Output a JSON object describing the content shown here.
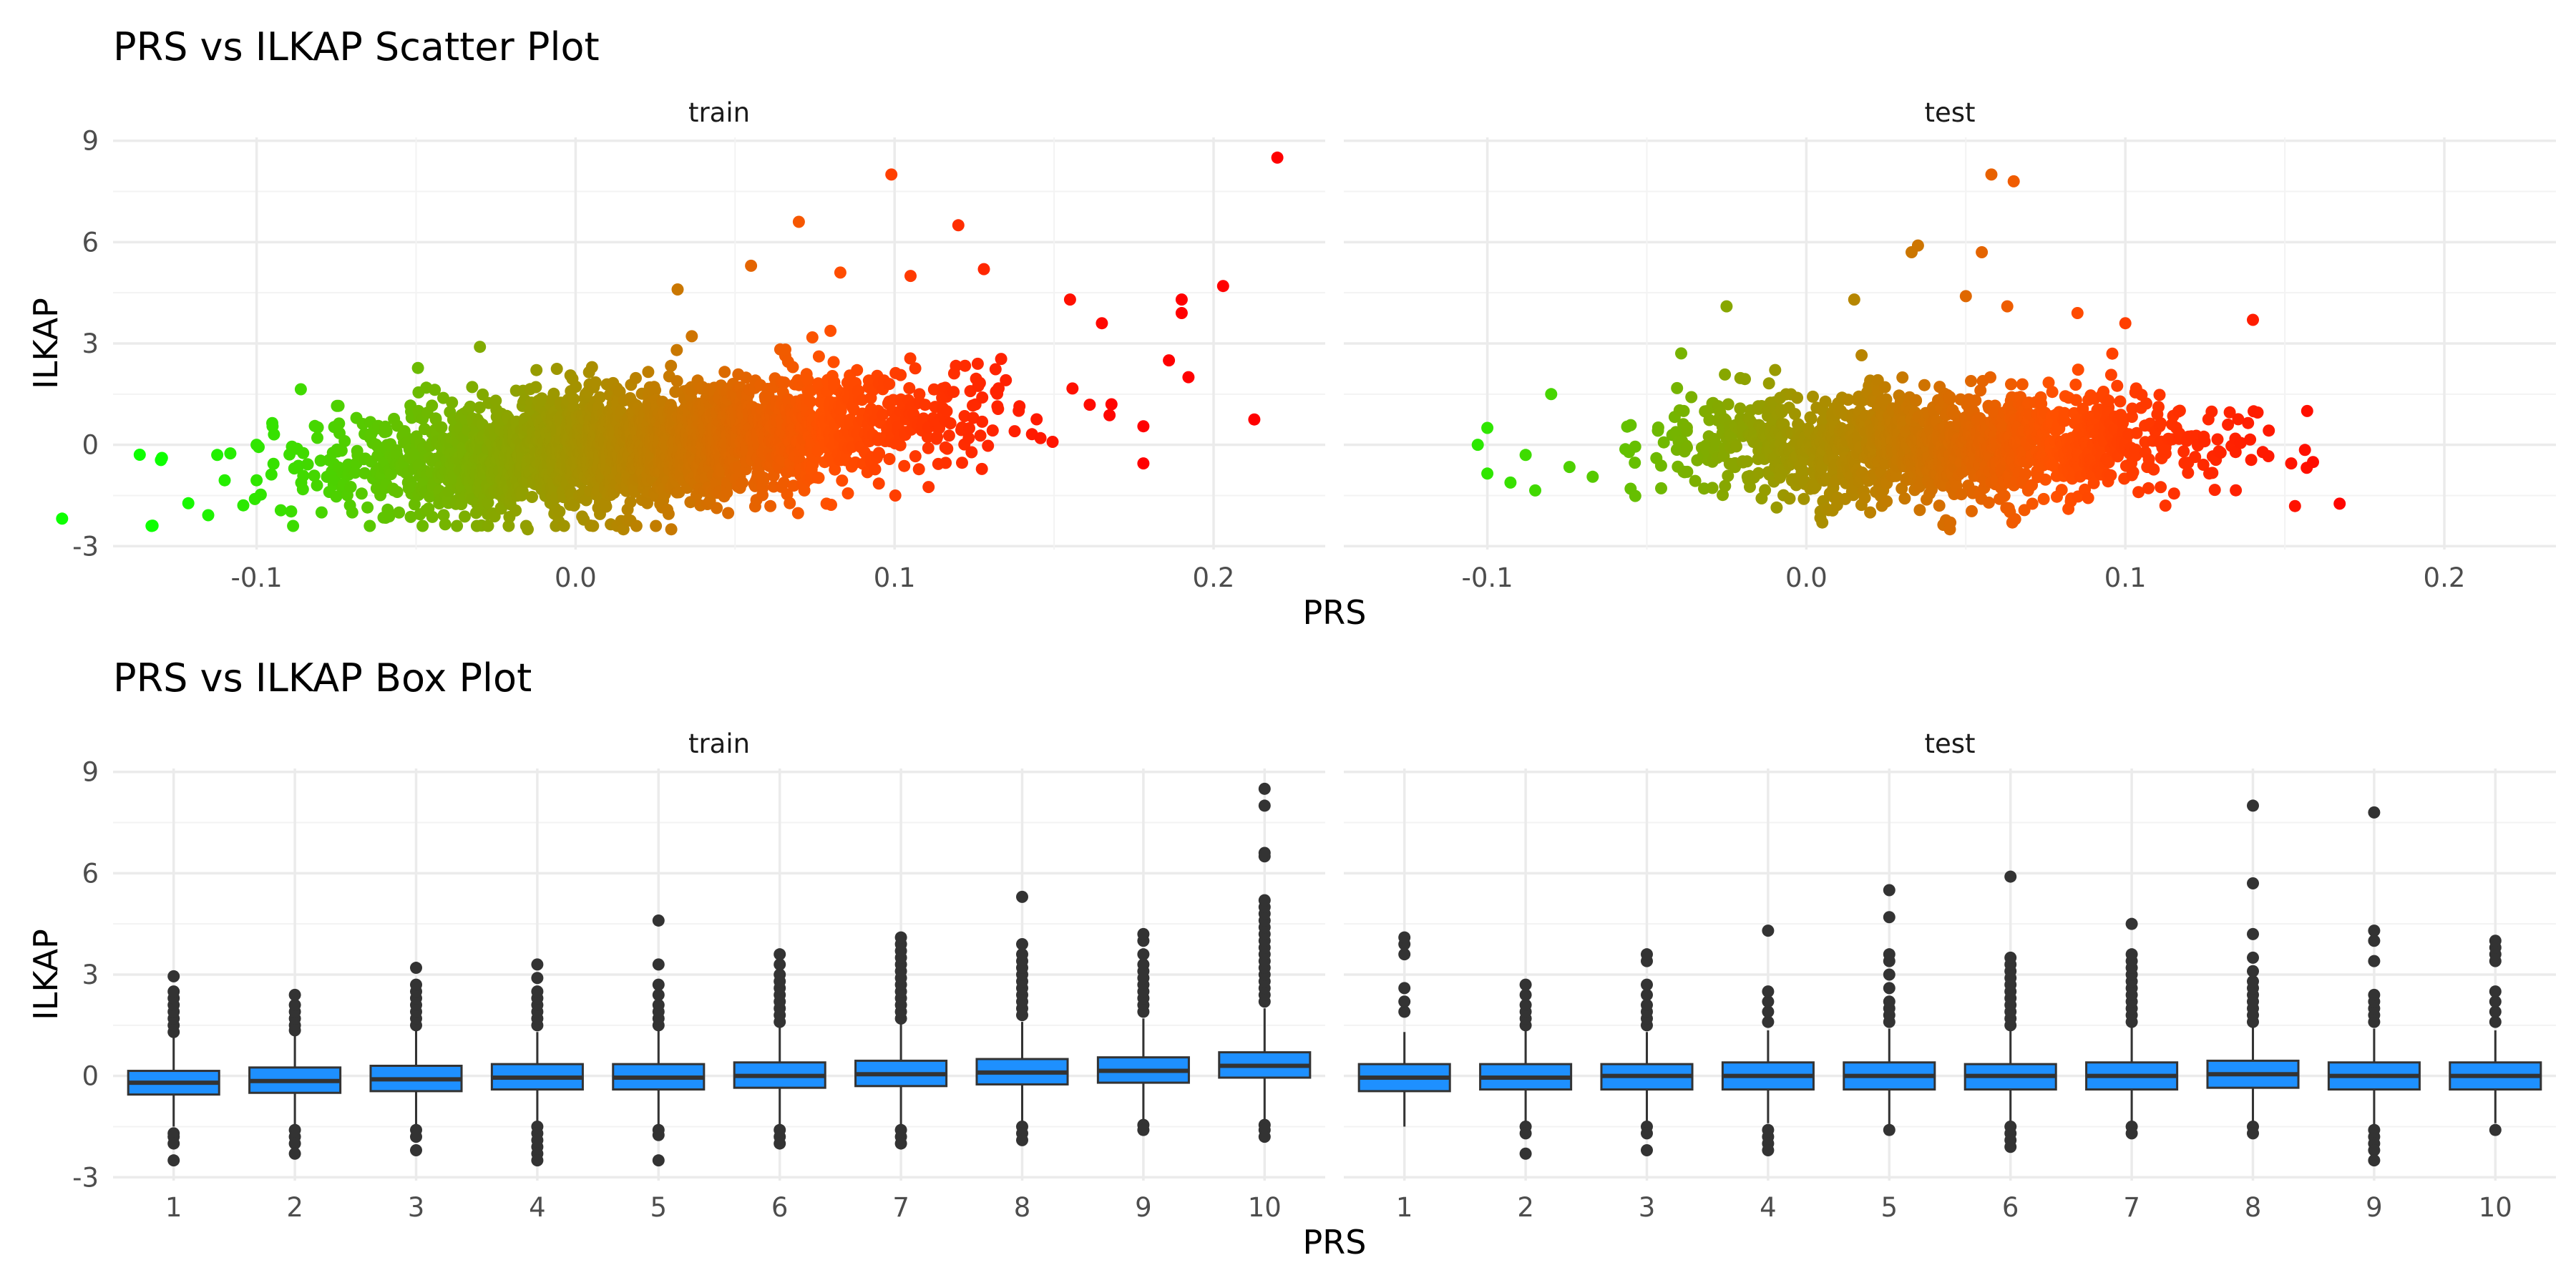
{
  "figure": {
    "background": "#FFFFFF",
    "grid_major": "#EBEBEB",
    "grid_minor": "#F3F3F3"
  },
  "scatter_title": "PRS vs ILKAP Scatter Plot",
  "box_title": "PRS vs ILKAP Box Plot",
  "scatter_xlabel": "PRS",
  "box_xlabel": "PRS",
  "scatter_ylabel": "ILKAP",
  "box_ylabel": "ILKAP",
  "panels": {
    "train": "train",
    "test": "test"
  },
  "scatter_yticks": [
    "-3",
    "0",
    "3",
    "6",
    "9"
  ],
  "scatter_xticks": [
    "-0.1",
    "0.0",
    "0.1",
    "0.2"
  ],
  "box_yticks": [
    "-3",
    "0",
    "3",
    "6",
    "9"
  ],
  "box_xticks": [
    "1",
    "2",
    "3",
    "4",
    "5",
    "6",
    "7",
    "8",
    "9",
    "10"
  ],
  "chart_data": [
    {
      "type": "scatter",
      "title": "PRS vs ILKAP Scatter Plot",
      "xlabel": "PRS",
      "ylabel": "ILKAP",
      "xlim": [
        -0.145,
        0.235
      ],
      "ylim": [
        -3.1,
        9.1
      ],
      "xticks": [
        -0.1,
        0.0,
        0.1,
        0.2
      ],
      "yticks": [
        -3,
        0,
        3,
        6,
        9
      ],
      "grid": true,
      "color_scale": {
        "low": "#00FF00",
        "high": "#FF0000",
        "domain": [
          -0.13,
          0.22
        ]
      },
      "facets": [
        {
          "name": "train",
          "x_center": 0.02,
          "x_spread": 0.045,
          "slope": 8,
          "noise": 0.75,
          "n_bulk": 2800,
          "outliers": [
            [
              -0.13,
              -0.45
            ],
            [
              -0.11,
              -1.05
            ],
            [
              -0.1,
              -1.05
            ],
            [
              -0.1,
              0
            ],
            [
              -0.095,
              0.55
            ],
            [
              0.099,
              8.0
            ],
            [
              0.22,
              8.5
            ],
            [
              0.203,
              4.7
            ],
            [
              0.19,
              4.3
            ],
            [
              0.19,
              3.9
            ],
            [
              0.186,
              2.5
            ],
            [
              0.178,
              -0.55
            ],
            [
              0.178,
              0.55
            ],
            [
              0.07,
              6.6
            ],
            [
              0.12,
              6.5
            ],
            [
              0.055,
              5.3
            ],
            [
              0.083,
              5.1
            ],
            [
              0.105,
              5.0
            ],
            [
              0.128,
              5.2
            ],
            [
              0.032,
              4.6
            ],
            [
              0.155,
              4.3
            ],
            [
              0.165,
              3.6
            ],
            [
              0.168,
              1.2
            ],
            [
              -0.03,
              2.9
            ],
            [
              -0.015,
              -2.5
            ],
            [
              0.015,
              -2.5
            ],
            [
              0.03,
              -2.5
            ],
            [
              -0.07,
              -2.0
            ]
          ]
        },
        {
          "name": "test",
          "x_center": 0.04,
          "x_spread": 0.04,
          "slope": 0,
          "noise": 0.7,
          "n_bulk": 1500,
          "outliers": [
            [
              -0.1,
              0.5
            ],
            [
              -0.103,
              0
            ],
            [
              -0.1,
              -0.85
            ],
            [
              -0.088,
              -0.3
            ],
            [
              -0.085,
              -1.35
            ],
            [
              -0.08,
              1.5
            ],
            [
              0.058,
              8.0
            ],
            [
              0.065,
              7.8
            ],
            [
              0.035,
              5.9
            ],
            [
              0.033,
              5.7
            ],
            [
              0.055,
              5.7
            ],
            [
              -0.025,
              4.1
            ],
            [
              0.015,
              4.3
            ],
            [
              0.05,
              4.4
            ],
            [
              0.063,
              4.1
            ],
            [
              0.14,
              3.7
            ],
            [
              0.157,
              1.0
            ],
            [
              0.152,
              -0.55
            ],
            [
              0.045,
              -2.5
            ],
            [
              0.005,
              -2.3
            ],
            [
              0.02,
              -2.0
            ],
            [
              0.085,
              3.9
            ],
            [
              0.1,
              3.6
            ]
          ]
        }
      ]
    },
    {
      "type": "box",
      "title": "PRS vs ILKAP Box Plot",
      "xlabel": "PRS",
      "ylabel": "ILKAP",
      "categories": [
        "1",
        "2",
        "3",
        "4",
        "5",
        "6",
        "7",
        "8",
        "9",
        "10"
      ],
      "ylim": [
        -3.1,
        9.1
      ],
      "yticks": [
        -3,
        0,
        3,
        6,
        9
      ],
      "fill": "#1E90FF",
      "series": [
        {
          "name": "train",
          "boxes": [
            {
              "q1": -0.55,
              "median": -0.2,
              "q3": 0.15,
              "whisker_low": -1.5,
              "whisker_high": 1.15,
              "outliers": [
                1.3,
                1.5,
                1.7,
                1.9,
                2.1,
                2.3,
                2.5,
                2.95,
                -1.7,
                -1.8,
                -2.0,
                -2.5
              ]
            },
            {
              "q1": -0.5,
              "median": -0.15,
              "q3": 0.25,
              "whisker_low": -1.45,
              "whisker_high": 1.2,
              "outliers": [
                1.35,
                1.5,
                1.7,
                1.9,
                2.1,
                2.4,
                -1.6,
                -1.8,
                -2.0,
                -2.3
              ]
            },
            {
              "q1": -0.45,
              "median": -0.1,
              "q3": 0.3,
              "whisker_low": -1.45,
              "whisker_high": 1.35,
              "outliers": [
                1.5,
                1.7,
                1.9,
                2.1,
                2.3,
                2.5,
                2.7,
                3.2,
                -1.6,
                -1.8,
                -2.2
              ]
            },
            {
              "q1": -0.4,
              "median": -0.05,
              "q3": 0.35,
              "whisker_low": -1.45,
              "whisker_high": 1.3,
              "outliers": [
                1.5,
                1.7,
                1.9,
                2.1,
                2.3,
                2.5,
                2.9,
                3.3,
                -1.5,
                -1.7,
                -1.9,
                -2.1,
                -2.3,
                -2.5
              ]
            },
            {
              "q1": -0.4,
              "median": -0.05,
              "q3": 0.35,
              "whisker_low": -1.45,
              "whisker_high": 1.35,
              "outliers": [
                1.5,
                1.7,
                1.9,
                2.1,
                2.4,
                2.7,
                3.3,
                4.6,
                -1.6,
                -1.75,
                -2.5
              ]
            },
            {
              "q1": -0.35,
              "median": 0.0,
              "q3": 0.4,
              "whisker_low": -1.45,
              "whisker_high": 1.45,
              "outliers": [
                1.6,
                1.8,
                2.0,
                2.2,
                2.4,
                2.6,
                2.8,
                3.0,
                3.3,
                3.6,
                -1.6,
                -1.8,
                -2.0
              ]
            },
            {
              "q1": -0.3,
              "median": 0.05,
              "q3": 0.45,
              "whisker_low": -1.45,
              "whisker_high": 1.55,
              "outliers": [
                1.7,
                1.9,
                2.1,
                2.3,
                2.5,
                2.7,
                2.9,
                3.1,
                3.3,
                3.5,
                3.7,
                3.9,
                4.1,
                -1.6,
                -1.8,
                -2.0
              ]
            },
            {
              "q1": -0.25,
              "median": 0.1,
              "q3": 0.5,
              "whisker_low": -1.45,
              "whisker_high": 1.6,
              "outliers": [
                1.8,
                2.0,
                2.2,
                2.4,
                2.6,
                2.8,
                3.0,
                3.2,
                3.4,
                3.6,
                3.9,
                5.3,
                -1.5,
                -1.7,
                -1.9
              ]
            },
            {
              "q1": -0.2,
              "median": 0.15,
              "q3": 0.55,
              "whisker_low": -1.35,
              "whisker_high": 1.7,
              "outliers": [
                1.9,
                2.1,
                2.3,
                2.5,
                2.7,
                2.9,
                3.1,
                3.3,
                3.6,
                4.0,
                4.2,
                -1.45,
                -1.6
              ]
            },
            {
              "q1": -0.05,
              "median": 0.3,
              "q3": 0.7,
              "whisker_low": -1.3,
              "whisker_high": 2.0,
              "outliers": [
                2.2,
                2.4,
                2.6,
                2.8,
                3.0,
                3.2,
                3.4,
                3.6,
                3.8,
                4.0,
                4.2,
                4.4,
                4.6,
                4.8,
                5.0,
                5.2,
                6.5,
                6.6,
                8.0,
                8.5,
                -1.45,
                -1.6,
                -1.8
              ]
            }
          ]
        },
        {
          "name": "test",
          "boxes": [
            {
              "q1": -0.45,
              "median": -0.05,
              "q3": 0.35,
              "whisker_low": -1.5,
              "whisker_high": 1.3,
              "outliers": [
                1.9,
                2.2,
                2.6,
                3.6,
                3.9,
                4.1
              ]
            },
            {
              "q1": -0.4,
              "median": -0.05,
              "q3": 0.35,
              "whisker_low": -1.4,
              "whisker_high": 1.35,
              "outliers": [
                1.5,
                1.7,
                1.9,
                2.1,
                2.4,
                2.7,
                -1.5,
                -1.7,
                -2.3
              ]
            },
            {
              "q1": -0.4,
              "median": 0.0,
              "q3": 0.35,
              "whisker_low": -1.4,
              "whisker_high": 1.3,
              "outliers": [
                1.5,
                1.7,
                1.9,
                2.1,
                2.4,
                2.7,
                3.4,
                3.6,
                -1.5,
                -1.7,
                -2.2
              ]
            },
            {
              "q1": -0.4,
              "median": 0.0,
              "q3": 0.4,
              "whisker_low": -1.4,
              "whisker_high": 1.35,
              "outliers": [
                1.6,
                1.9,
                2.2,
                2.5,
                4.3,
                -1.6,
                -1.8,
                -2.0,
                -2.2
              ]
            },
            {
              "q1": -0.4,
              "median": 0.0,
              "q3": 0.4,
              "whisker_low": -1.5,
              "whisker_high": 1.4,
              "outliers": [
                1.6,
                1.8,
                2.0,
                2.2,
                2.6,
                3.0,
                3.4,
                3.6,
                4.7,
                5.5,
                -1.6
              ]
            },
            {
              "q1": -0.4,
              "median": 0.0,
              "q3": 0.35,
              "whisker_low": -1.45,
              "whisker_high": 1.35,
              "outliers": [
                1.5,
                1.7,
                1.9,
                2.1,
                2.3,
                2.5,
                2.7,
                2.9,
                3.1,
                3.3,
                3.5,
                5.9,
                -1.5,
                -1.7,
                -1.9,
                -2.1
              ]
            },
            {
              "q1": -0.4,
              "median": 0.0,
              "q3": 0.4,
              "whisker_low": -1.4,
              "whisker_high": 1.45,
              "outliers": [
                1.6,
                1.8,
                2.0,
                2.2,
                2.4,
                2.6,
                2.8,
                3.0,
                3.2,
                3.4,
                3.6,
                4.5,
                -1.5,
                -1.7
              ]
            },
            {
              "q1": -0.35,
              "median": 0.05,
              "q3": 0.45,
              "whisker_low": -1.45,
              "whisker_high": 1.5,
              "outliers": [
                1.6,
                1.8,
                2.0,
                2.2,
                2.4,
                2.6,
                2.8,
                3.1,
                3.5,
                4.2,
                5.7,
                8.0,
                -1.5,
                -1.7
              ]
            },
            {
              "q1": -0.4,
              "median": 0.0,
              "q3": 0.4,
              "whisker_low": -1.45,
              "whisker_high": 1.4,
              "outliers": [
                1.6,
                1.8,
                2.0,
                2.2,
                2.4,
                3.4,
                4.0,
                4.3,
                7.8,
                -1.6,
                -1.8,
                -2.0,
                -2.2,
                -2.5
              ]
            },
            {
              "q1": -0.4,
              "median": 0.0,
              "q3": 0.4,
              "whisker_low": -1.4,
              "whisker_high": 1.35,
              "outliers": [
                1.6,
                1.9,
                2.2,
                2.5,
                3.4,
                3.6,
                3.8,
                4.0,
                -1.6
              ]
            }
          ]
        }
      ]
    }
  ]
}
